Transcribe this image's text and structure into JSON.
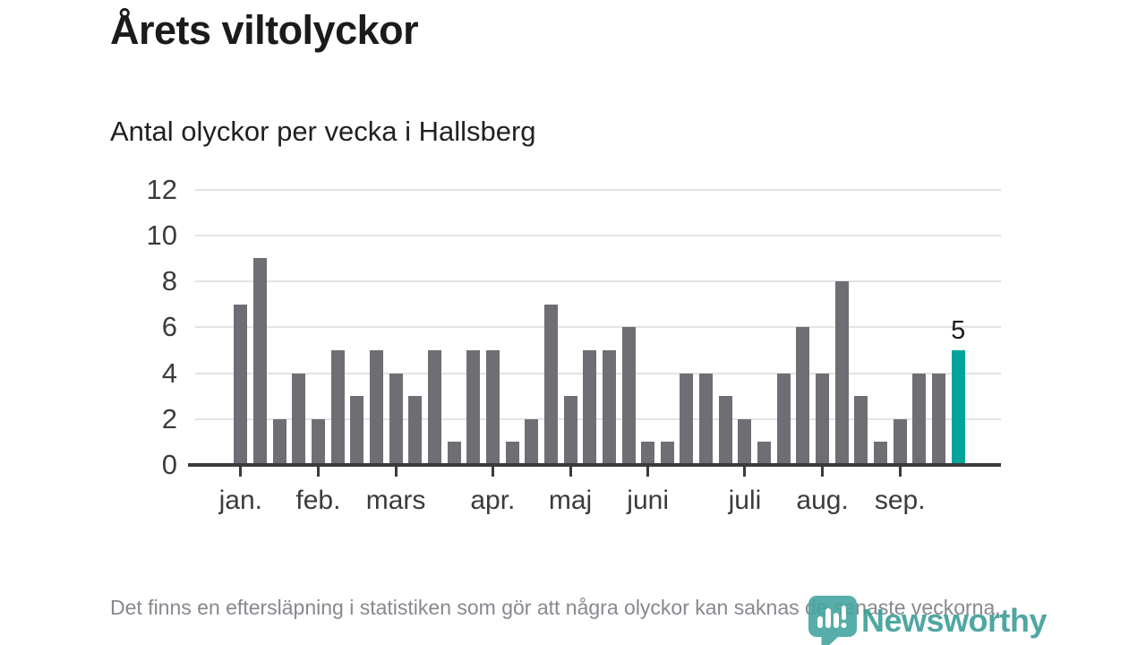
{
  "header": {
    "title": "Årets viltolyckor",
    "subtitle": "Antal olyckor per vecka i Hallsberg"
  },
  "chart_data": {
    "type": "bar",
    "title": "Årets viltolyckor",
    "subtitle": "Antal olyckor per vecka i Hallsberg",
    "x_unit": "vecka",
    "ylim": [
      0,
      12
    ],
    "y_ticks": [
      0,
      2,
      4,
      6,
      8,
      10,
      12
    ],
    "grid": "horizontal",
    "legend": "none",
    "values": [
      7,
      9,
      2,
      4,
      2,
      5,
      3,
      5,
      4,
      3,
      5,
      1,
      5,
      5,
      1,
      2,
      7,
      3,
      5,
      5,
      6,
      1,
      1,
      4,
      4,
      3,
      2,
      1,
      4,
      6,
      4,
      8,
      3,
      1,
      2,
      4,
      4,
      5
    ],
    "month_ticks": [
      {
        "label": "jan.",
        "week_index": 0
      },
      {
        "label": "feb.",
        "week_index": 4
      },
      {
        "label": "mars",
        "week_index": 8
      },
      {
        "label": "apr.",
        "week_index": 13
      },
      {
        "label": "maj",
        "week_index": 17
      },
      {
        "label": "juni",
        "week_index": 21
      },
      {
        "label": "juli",
        "week_index": 26
      },
      {
        "label": "aug.",
        "week_index": 30
      },
      {
        "label": "sep.",
        "week_index": 34
      }
    ],
    "bar_color": "#6e6e74",
    "highlight": {
      "index": 37,
      "label": "5",
      "color": "#00a49b"
    }
  },
  "footer": {
    "note": "Det finns en eftersläpning i statistiken som gör att några olyckor kan saknas de senaste veckorna.",
    "brand": "Newsworthy"
  },
  "colors": {
    "axis_text": "#3b3b3f",
    "gridline": "#e3e3e3",
    "title_text": "#1b1b1e",
    "footer_text": "#87878f",
    "brand_teal": "#3d9e99"
  }
}
